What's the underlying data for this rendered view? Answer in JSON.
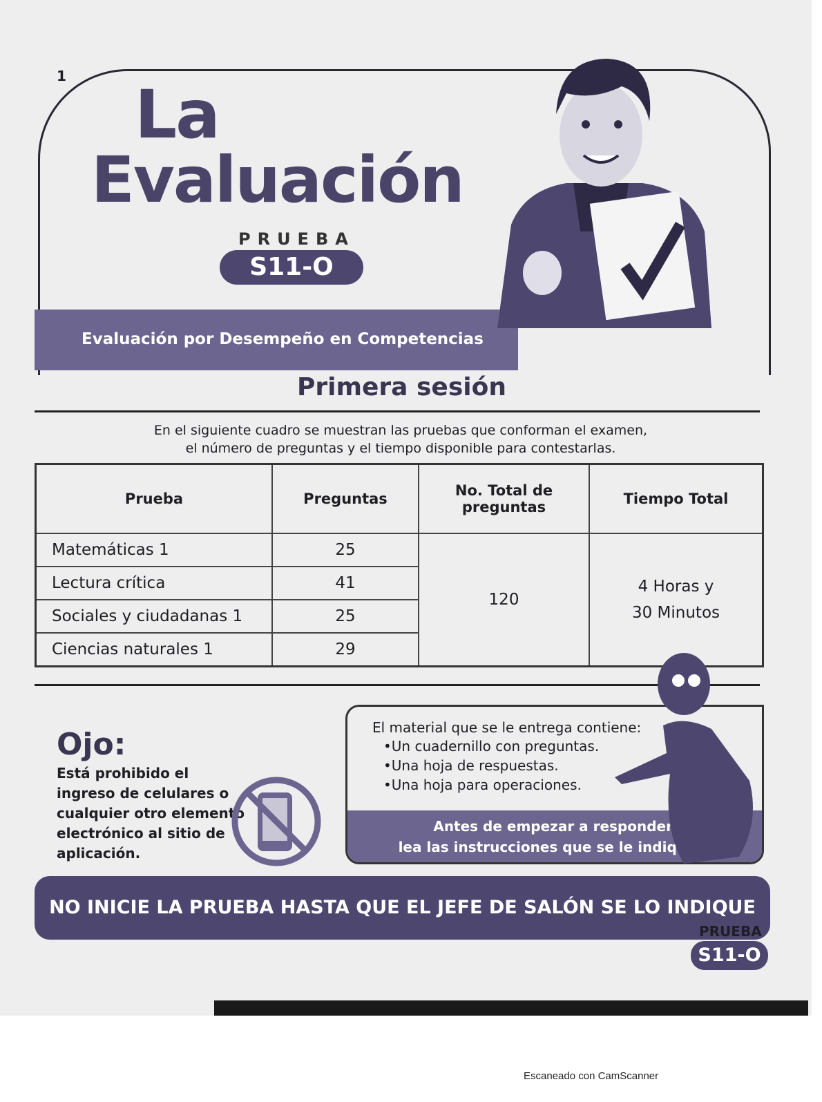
{
  "page_number": "1",
  "header": {
    "title_line1": "La",
    "title_line2": "Evaluación",
    "prueba_label": "PRUEBA",
    "test_code": "S11-O",
    "banner": "Evaluación por Desempeño en Competencias"
  },
  "session": {
    "title": "Primera sesión",
    "intro_line1": "En el siguiente cuadro se muestran las pruebas que conforman el examen,",
    "intro_line2": "el número de preguntas y el tiempo disponible para contestarlas."
  },
  "table": {
    "headers": [
      "Prueba",
      "Preguntas",
      "No. Total de preguntas",
      "Tiempo Total"
    ],
    "rows": [
      {
        "prueba": "Matemáticas 1",
        "preguntas": "25"
      },
      {
        "prueba": "Lectura crítica",
        "preguntas": "41"
      },
      {
        "prueba": "Sociales y ciudadanas 1",
        "preguntas": "25"
      },
      {
        "prueba": "Ciencias naturales 1",
        "preguntas": "29"
      }
    ],
    "total": "120",
    "tiempo_line1": "4 Horas y",
    "tiempo_line2": "30 Minutos"
  },
  "ojo": {
    "title": "Ojo:",
    "text": "Está prohibido el ingreso de celulares o cualquier otro elemento electrónico al sitio de aplicación."
  },
  "material": {
    "title": "El material que se le entrega contiene:",
    "items": [
      "•Un cuadernillo con preguntas.",
      "•Una hoja de respuestas.",
      "•Una hoja para operaciones."
    ],
    "note_line1": "Antes de empezar a responder,",
    "note_line2": "lea las instrucciones que se le indiquen."
  },
  "warning": "NO INICIE LA PRUEBA HASTA QUE EL JEFE DE SALÓN SE LO INDIQUE",
  "footer": {
    "prueba_label": "PRUEBA",
    "test_code": "S11-O"
  },
  "scanner_note": "Escaneado con CamScanner",
  "colors": {
    "accent": "#4d4770",
    "banner": "#6b6590",
    "paper": "#eeeeee"
  }
}
